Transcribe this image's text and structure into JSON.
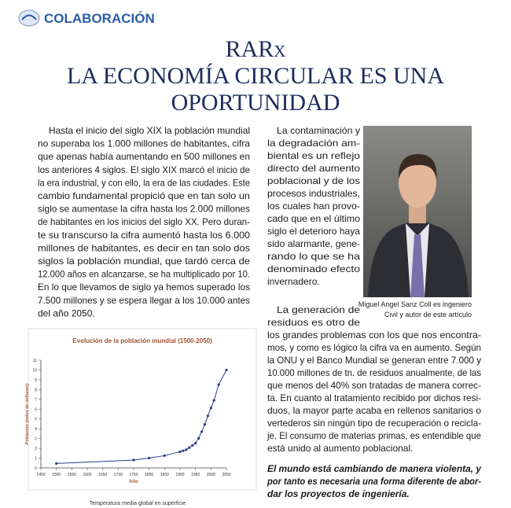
{
  "header": {
    "section": "COLABORACIÓN"
  },
  "title": {
    "lines": [
      "RARx",
      "LA ECONOMÍA CIRCULAR ES UNA",
      "OPORTUNIDAD"
    ]
  },
  "left_column": {
    "paragraphs": [
      {
        "lines": [
          "Hasta el inicio del siglo XIX la población mundial",
          "no superaba los 1.000 millones de habitantes, cifra",
          "que apenas había aumentando en 500 millones en",
          "los anteriores 4 siglos. El siglo XIX marcó el inicio de",
          "la era industrial, y con ello, la era de las ciudades. Este",
          "cambio fundamental propició que en tan solo un",
          "siglo se aumentase la cifra hasta los 2.000 millones",
          "de habitantes en los inicios del siglo XX. Pero duran-",
          "te su transcurso la cifra aumentó hasta los 6.000",
          "millones de habitantes, es decir en tan solo dos",
          "siglos la población mundial, que tardó cerca de",
          "12.000 años en alcanzarse, se ha multiplicado por 10.",
          "En lo que llevamos de siglo ya hemos superado los",
          "7.500 millones y se espera llegar a los 10.000 antes",
          "del año 2050."
        ]
      }
    ]
  },
  "right_column": {
    "paragraphs": [
      {
        "lines": [
          "La contaminación y",
          "la degradación am-",
          "biental es un reflejo",
          "directo del aumento",
          "poblacional y de los",
          "procesos industriales,",
          "los cuales han provo-",
          "cado que en el último",
          "siglo el deterioro haya",
          "sido alarmante, gene-",
          "rando lo que se ha",
          "denominado efecto",
          "invernadero."
        ]
      },
      {
        "lines": [
          "La generación de",
          "residuos es otro de",
          "los grandes problemas con los que nos encontra-",
          "mos, y como es lógico la cifra va en aumento. Según",
          "la ONU y el Banco Mundial se generan entre 7.000 y",
          "10.000 millones de tn. de residuos anualmente, de las",
          "que menos del 40% son tratadas de manera correc-",
          "ta. En cuanto al tratamiento recibido por dichos resi-",
          "duos, la mayor parte acaba en rellenos sanitarios o",
          "vertederos sin ningún tipo de recuperación o recicla-",
          "je. El consumo de materias primas, es entendible que",
          "está unido al aumento poblacional."
        ]
      }
    ],
    "caption": {
      "lines": [
        "Miguel Angel Sanz Coll es ingeniero",
        "Civil y autor de este artículo"
      ]
    },
    "quote": {
      "lines": [
        "El mundo está cambiando de manera violenta, y",
        "por tanto es necesaria una forma diferente de abor-",
        "dar los proyectos de ingeniería."
      ]
    }
  },
  "chart_data": {
    "type": "line",
    "title": "Evolución de la población mundial (1500-2050)",
    "x_label": "Año",
    "y_label": "Población (miles de millones)",
    "x": [
      1500,
      1750,
      1800,
      1850,
      1900,
      1910,
      1920,
      1930,
      1940,
      1950,
      1960,
      1970,
      1980,
      1990,
      2000,
      2010,
      2025,
      2050
    ],
    "values": [
      0.45,
      0.8,
      1.0,
      1.25,
      1.65,
      1.75,
      1.86,
      2.07,
      2.3,
      2.52,
      3.02,
      3.7,
      4.44,
      5.31,
      6.12,
      6.9,
      8.5,
      10
    ],
    "color": "#2b3a8c",
    "xlim": [
      1450,
      2050
    ],
    "xticks": [
      1450,
      1500,
      1550,
      1600,
      1650,
      1700,
      1750,
      1800,
      1850,
      1900,
      1950,
      2000,
      2050
    ],
    "ylim": [
      0,
      11
    ],
    "yticks": [
      0,
      1,
      2,
      3,
      4,
      5,
      6,
      7,
      8,
      9,
      10,
      11
    ]
  },
  "next_figure_title": "Temperatura media global en superficie"
}
